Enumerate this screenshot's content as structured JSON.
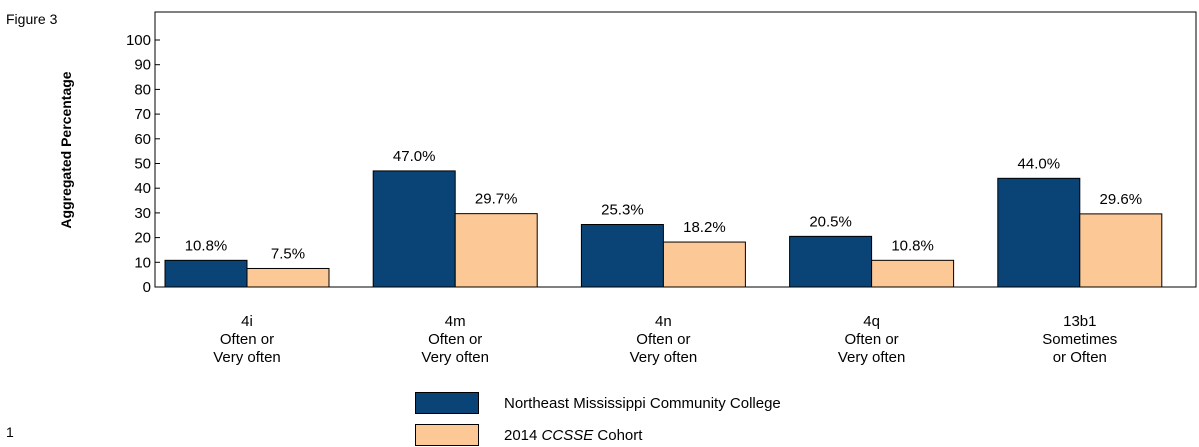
{
  "figure_label": "Figure 3",
  "page_number": "1",
  "colors": {
    "series1": "#0a4477",
    "series2": "#fcc996"
  },
  "chart_data": {
    "type": "bar",
    "ylabel": "Aggregated Percentage",
    "ylim": [
      0,
      100
    ],
    "yticks": [
      0,
      10,
      20,
      30,
      40,
      50,
      60,
      70,
      80,
      90,
      100
    ],
    "categories": [
      [
        "4i",
        "Often or",
        "Very often"
      ],
      [
        "4m",
        "Often or",
        "Very often"
      ],
      [
        "4n",
        "Often or",
        "Very often"
      ],
      [
        "4q",
        "Often or",
        "Very often"
      ],
      [
        "13b1",
        "Sometimes",
        "or Often"
      ]
    ],
    "series": [
      {
        "name": "Northeast Mississippi Community College",
        "values": [
          10.8,
          47.0,
          25.3,
          20.5,
          44.0
        ],
        "labels": [
          "10.8%",
          "47.0%",
          "25.3%",
          "20.5%",
          "44.0%"
        ]
      },
      {
        "name_parts": [
          "2014",
          "CCSSE",
          "Cohort"
        ],
        "values": [
          7.5,
          29.7,
          18.2,
          10.8,
          29.6
        ],
        "labels": [
          "7.5%",
          "29.7%",
          "18.2%",
          "10.8%",
          "29.6%"
        ]
      }
    ],
    "grid": false,
    "legend_position": "bottom"
  }
}
